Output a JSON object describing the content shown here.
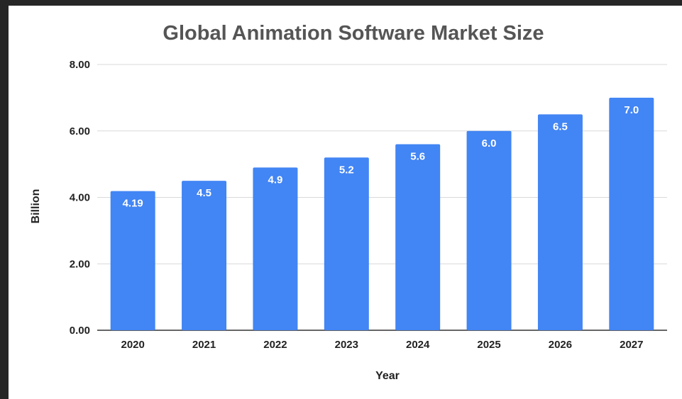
{
  "chart_data": {
    "type": "bar",
    "title": "Global Animation Software Market Size",
    "xlabel": "Year",
    "ylabel": "Billion",
    "categories": [
      "2020",
      "2021",
      "2022",
      "2023",
      "2024",
      "2025",
      "2026",
      "2027"
    ],
    "values": [
      4.19,
      4.5,
      4.9,
      5.2,
      5.6,
      6.0,
      6.5,
      7.0
    ],
    "data_labels": [
      "4.19",
      "4.5",
      "4.9",
      "5.2",
      "5.6",
      "6.0",
      "6.5",
      "7.0"
    ],
    "ylim": [
      0,
      8
    ],
    "yticks": [
      0,
      2,
      4,
      6,
      8
    ],
    "ytick_labels": [
      "0.00",
      "2.00",
      "4.00",
      "6.00",
      "8.00"
    ],
    "grid": true,
    "bar_color": "#4285f4",
    "gridline_color": "#d9d9d9"
  }
}
